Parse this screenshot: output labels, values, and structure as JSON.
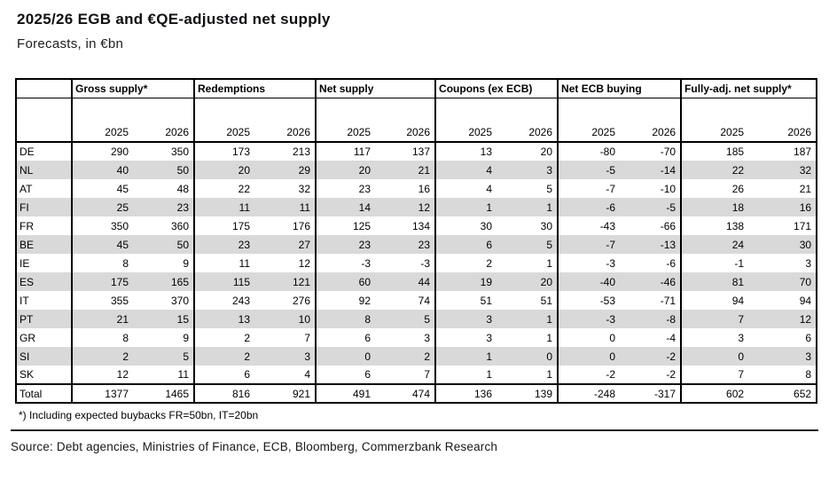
{
  "title": "2025/26 EGB and €QE-adjusted net supply",
  "subtitle": "Forecasts, in €bn",
  "footnote": "*) Including expected buybacks FR=50bn, IT=20bn",
  "source": "Source: Debt agencies, Ministries of Finance, ECB, Bloomberg, Commerzbank Research",
  "colors": {
    "row_alt_shade": "#d9d9d9",
    "border": "#000000",
    "text": "#000000"
  },
  "chart_data": {
    "type": "table",
    "title": "2025/26 EGB and €QE-adjusted net supply",
    "subtitle": "Forecasts, in €bn",
    "column_groups": [
      "Gross supply*",
      "Redemptions",
      "Net supply",
      "Coupons (ex ECB)",
      "Net ECB buying",
      "Fully-adj. net supply*"
    ],
    "year_headers": [
      "2025",
      "2026"
    ],
    "rows": [
      {
        "label": "DE",
        "values": [
          290,
          350,
          173,
          213,
          117,
          137,
          13,
          20,
          -80,
          -70,
          185,
          187
        ]
      },
      {
        "label": "NL",
        "values": [
          40,
          50,
          20,
          29,
          20,
          21,
          4,
          3,
          -5,
          -14,
          22,
          32
        ]
      },
      {
        "label": "AT",
        "values": [
          45,
          48,
          22,
          32,
          23,
          16,
          4,
          5,
          -7,
          -10,
          26,
          21
        ]
      },
      {
        "label": "FI",
        "values": [
          25,
          23,
          11,
          11,
          14,
          12,
          1,
          1,
          -6,
          -5,
          18,
          16
        ]
      },
      {
        "label": "FR",
        "values": [
          350,
          360,
          175,
          176,
          125,
          134,
          30,
          30,
          -43,
          -66,
          138,
          171
        ]
      },
      {
        "label": "BE",
        "values": [
          45,
          50,
          23,
          27,
          23,
          23,
          6,
          5,
          -7,
          -13,
          24,
          30
        ]
      },
      {
        "label": "IE",
        "values": [
          8,
          9,
          11,
          12,
          -3,
          -3,
          2,
          1,
          -3,
          -6,
          -1,
          3
        ]
      },
      {
        "label": "ES",
        "values": [
          175,
          165,
          115,
          121,
          60,
          44,
          19,
          20,
          -40,
          -46,
          81,
          70
        ]
      },
      {
        "label": "IT",
        "values": [
          355,
          370,
          243,
          276,
          92,
          74,
          51,
          51,
          -53,
          -71,
          94,
          94
        ]
      },
      {
        "label": "PT",
        "values": [
          21,
          15,
          13,
          10,
          8,
          5,
          3,
          1,
          -3,
          -8,
          7,
          12
        ]
      },
      {
        "label": "GR",
        "values": [
          8,
          9,
          2,
          7,
          6,
          3,
          3,
          1,
          0,
          -4,
          3,
          6
        ]
      },
      {
        "label": "SI",
        "values": [
          2,
          5,
          2,
          3,
          0,
          2,
          1,
          0,
          0,
          -2,
          0,
          3
        ]
      },
      {
        "label": "SK",
        "values": [
          12,
          11,
          6,
          4,
          6,
          7,
          1,
          1,
          -2,
          -2,
          7,
          8
        ]
      }
    ],
    "total": {
      "label": "Total",
      "values": [
        1377,
        1465,
        816,
        921,
        491,
        474,
        136,
        139,
        -248,
        -317,
        602,
        652
      ]
    }
  }
}
